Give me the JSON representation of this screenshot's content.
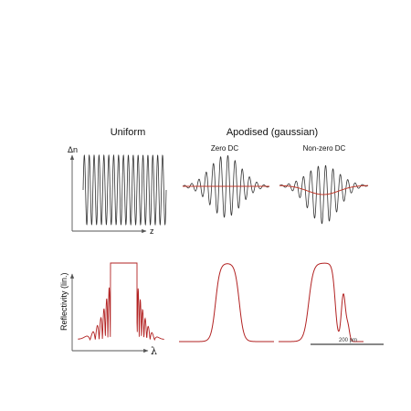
{
  "headings": {
    "uniform": "Uniform",
    "apodised": "Apodised (gaussian)",
    "zero_dc": "Zero DC",
    "nonzero_dc": "Non-zero DC"
  },
  "axes": {
    "dn_label": "Δn",
    "z_label": "z",
    "reflectivity_label": "Reflectivity (lin.)",
    "lambda_label": "λ",
    "scale_label": "200 pm"
  },
  "colors": {
    "ink": "#333333",
    "spectrum": "#b22222",
    "dc_level": "#c0392b"
  },
  "panels": {
    "uniform_index": {
      "profile": "uniform",
      "cycles": 17
    },
    "zero_dc_index": {
      "profile": "gaussian",
      "cycles": 12,
      "dc_offset": 0
    },
    "nonzero_dc_index": {
      "profile": "gaussian",
      "cycles": 12,
      "dc_offset": 1
    },
    "uniform_reflectivity": {
      "shape": "flat-top with side lobes",
      "side_lobes": 6
    },
    "zero_dc_reflectivity": {
      "shape": "smooth flat-top, no side lobes"
    },
    "nonzero_dc_reflectivity": {
      "shape": "flat-top with short-wavelength resonance"
    }
  }
}
